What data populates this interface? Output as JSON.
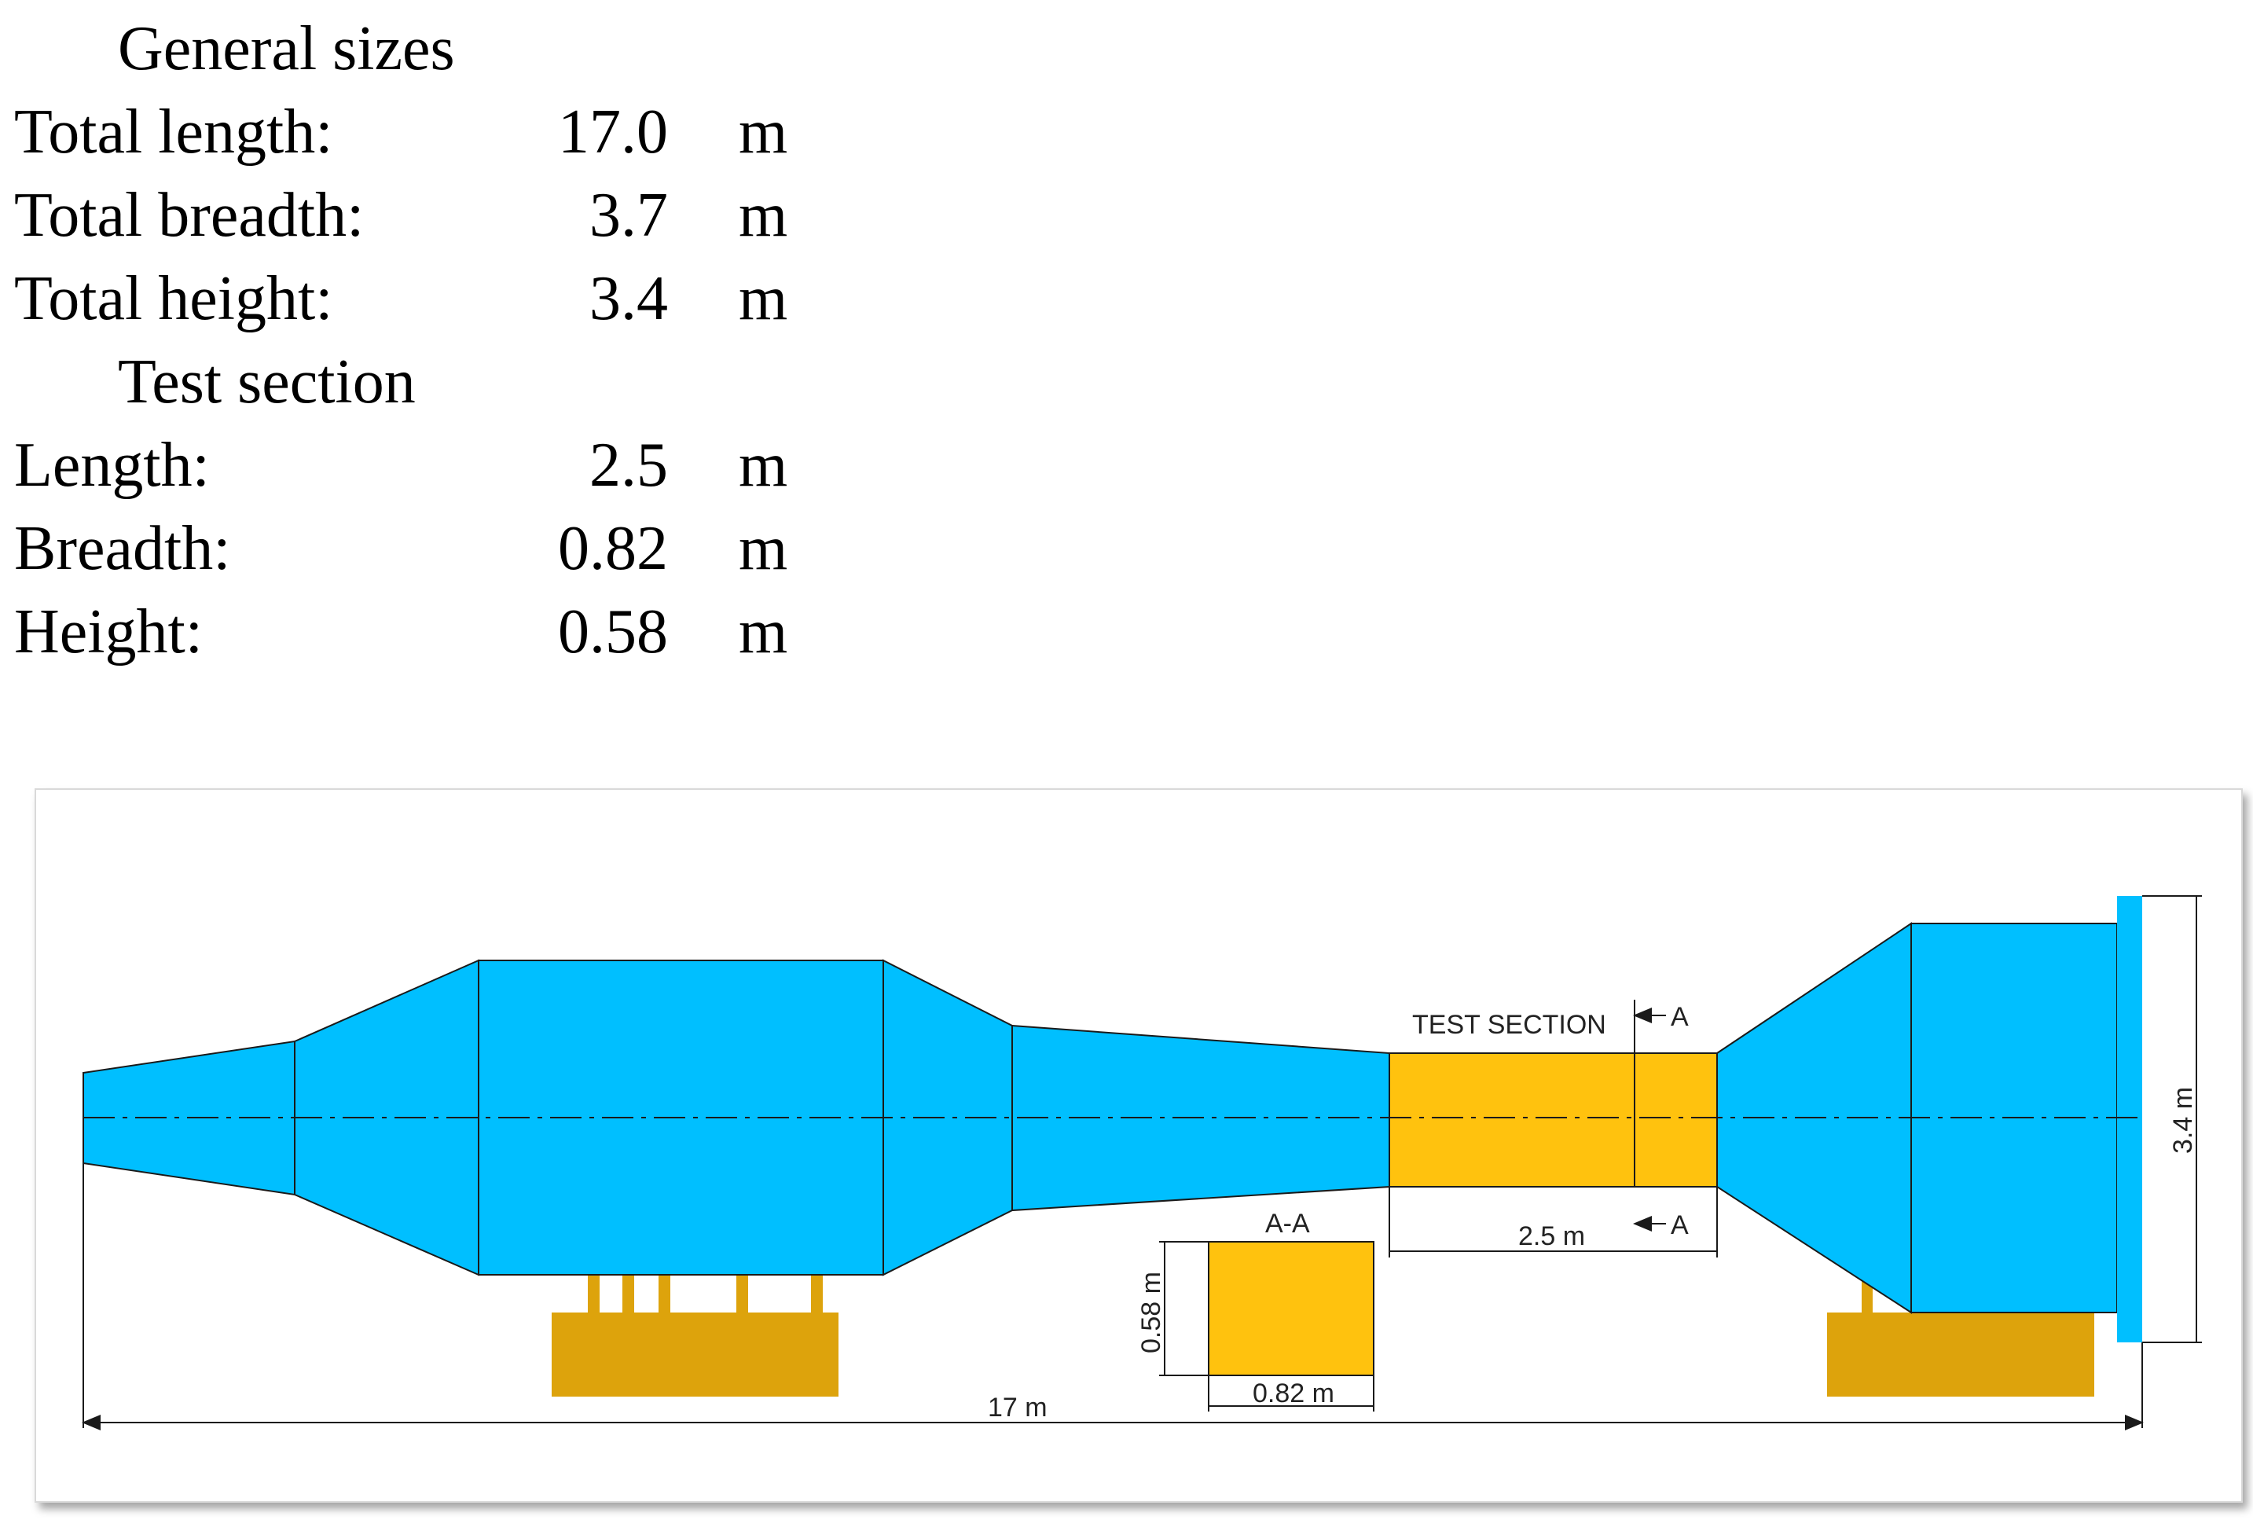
{
  "general": {
    "heading": "General sizes",
    "rows": [
      {
        "label": "Total length:",
        "value": "17.0",
        "unit": "m"
      },
      {
        "label": "Total breadth:",
        "value": "3.7",
        "unit": "m"
      },
      {
        "label": "Total height:",
        "value": "3.4",
        "unit": "m"
      }
    ]
  },
  "test_section": {
    "heading": "Test section",
    "rows": [
      {
        "label": "Length:",
        "value": "2.5",
        "unit": "m"
      },
      {
        "label": "Breadth:",
        "value": "0.82",
        "unit": "m"
      },
      {
        "label": "Height:",
        "value": "0.58",
        "unit": "m"
      }
    ]
  },
  "drawing": {
    "test_section_label": "TEST SECTION",
    "cut_marker": "A",
    "section_view_label": "A-A",
    "dim_test_length": "2.5 m",
    "dim_total_length": "17 m",
    "dim_total_height": "3.4 m",
    "dim_section_height": "0.58 m",
    "dim_section_breadth": "0.82 m",
    "colors": {
      "tunnel_body": "#00BFFF",
      "test_section": "#FFC20E",
      "supports": "#DDA30C",
      "lines": "#1a1a1a"
    }
  }
}
